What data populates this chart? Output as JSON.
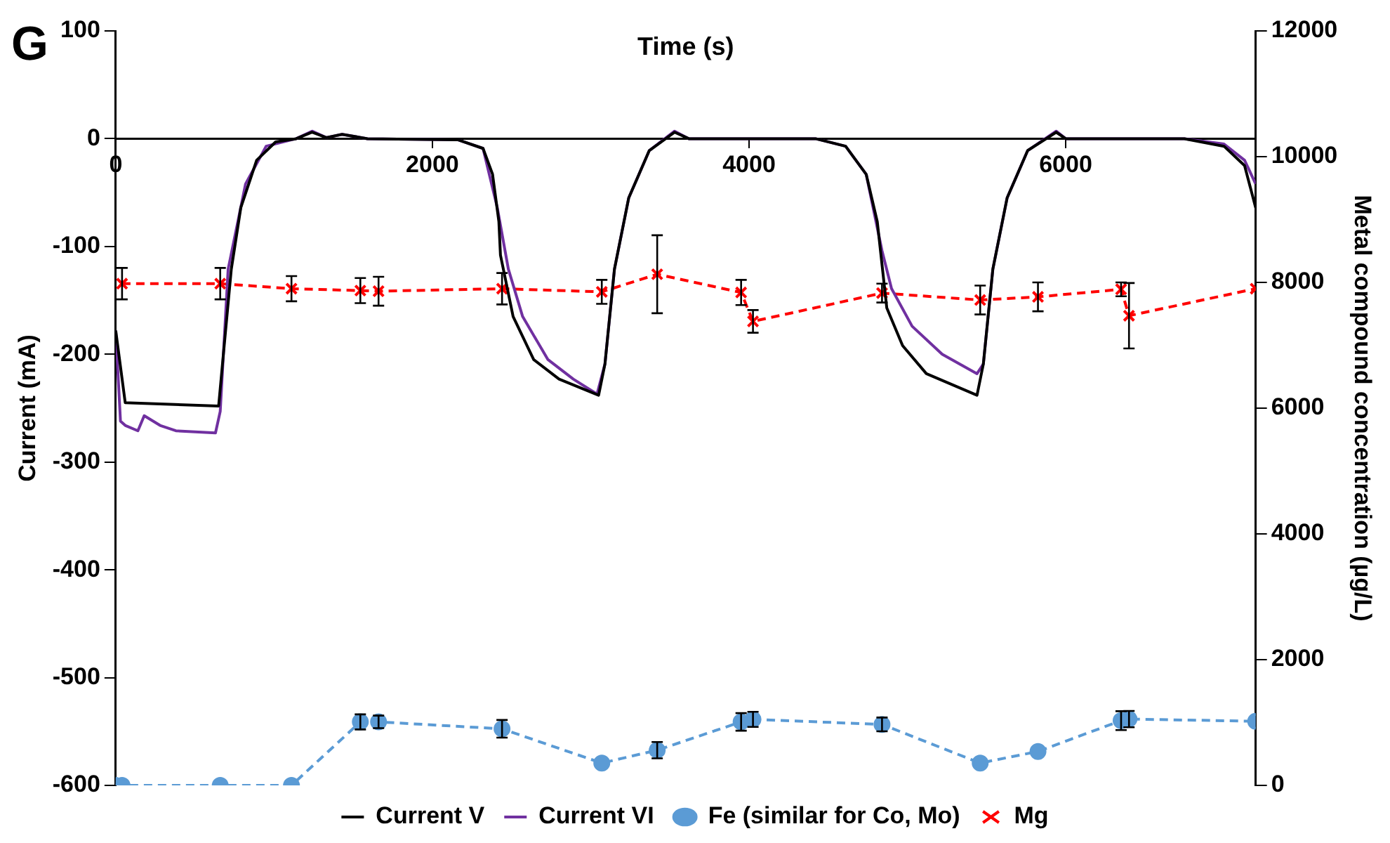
{
  "chart_data": {
    "type": "line",
    "xlabel": "Time (s)",
    "ylabel": "Current (mA)",
    "y2label": "Metal compound concentration (µg/L)",
    "annotations": [
      "G"
    ],
    "xlim": [
      0,
      7200
    ],
    "xticks": [
      0,
      2000,
      4000,
      6000
    ],
    "ylim": [
      -600,
      100
    ],
    "yticks": [
      -600,
      -500,
      -400,
      -300,
      -200,
      -100,
      0,
      100
    ],
    "y2lim": [
      0,
      12000
    ],
    "y2ticks": [
      0,
      2000,
      4000,
      6000,
      8000,
      10000,
      12000
    ],
    "legend": "bottom",
    "grid": false,
    "series": [
      {
        "name": "Current V",
        "color": "#000000",
        "marker": "none",
        "line_style": "solid",
        "x": [
          0,
          60,
          650,
          680,
          730,
          790,
          890,
          1010,
          1140,
          1240,
          1330,
          1430,
          1590,
          2160,
          2320,
          2380,
          2420,
          2430,
          2510,
          2640,
          2800,
          3050,
          3090,
          3150,
          3240,
          3370,
          3530,
          3620,
          4420,
          4610,
          4740,
          4810,
          4870,
          4970,
          5120,
          5440,
          5480,
          5540,
          5630,
          5760,
          5940,
          6000,
          6750,
          7000,
          7130,
          7200
        ],
        "values": [
          -178,
          -245,
          -248,
          -200,
          -121,
          -64,
          -20,
          -3,
          0,
          6,
          1,
          4,
          0,
          -1,
          -9,
          -33,
          -77,
          -108,
          -165,
          -205,
          -223,
          -238,
          -209,
          -121,
          -55,
          -11,
          6,
          0,
          0,
          -7,
          -33,
          -77,
          -157,
          -192,
          -218,
          -238,
          -209,
          -121,
          -55,
          -11,
          6,
          0,
          0,
          -7,
          -25,
          -64
        ]
      },
      {
        "name": "Current VI",
        "color": "#7030a0",
        "marker": "none",
        "line_style": "solid",
        "x": [
          0,
          30,
          60,
          140,
          180,
          280,
          380,
          630,
          660,
          710,
          820,
          950,
          1140,
          1240,
          1330,
          1430,
          1590,
          2160,
          2320,
          2410,
          2480,
          2570,
          2730,
          2890,
          3040,
          3090,
          3150,
          3240,
          3370,
          3530,
          3620,
          4420,
          4610,
          4740,
          4840,
          4900,
          5030,
          5220,
          5440,
          5480,
          5540,
          5630,
          5760,
          5940,
          6000,
          6750,
          7000,
          7130,
          7200
        ],
        "values": [
          -178,
          -262,
          -266,
          -271,
          -257,
          -266,
          -271,
          -273,
          -253,
          -121,
          -42,
          -7,
          0,
          7,
          1,
          4,
          0,
          -1,
          -9,
          -64,
          -121,
          -165,
          -205,
          -223,
          -237,
          -209,
          -121,
          -55,
          -11,
          7,
          0,
          0,
          -7,
          -33,
          -104,
          -139,
          -174,
          -200,
          -218,
          -209,
          -121,
          -55,
          -11,
          7,
          0,
          0,
          -5,
          -20,
          -42
        ]
      },
      {
        "name": "Fe (similar for Co, Mo)",
        "color": "#5b9bd5",
        "marker": "circle",
        "line_style": "dashed",
        "axis": "y2",
        "x": [
          0,
          40,
          660,
          1110,
          1545,
          1660,
          2440,
          3070,
          3420,
          3950,
          4025,
          4840,
          5460,
          5825,
          6350,
          6400,
          7200
        ],
        "values": [
          0,
          0,
          0,
          0,
          1010,
          1010,
          900,
          355,
          560,
          1010,
          1050,
          970,
          355,
          540,
          1030,
          1055,
          1020
        ],
        "errors": [
          null,
          null,
          null,
          null,
          120,
          100,
          140,
          null,
          130,
          140,
          120,
          110,
          null,
          null,
          150,
          130,
          null
        ]
      },
      {
        "name": "Mg",
        "color": "#ff0000",
        "marker": "cross",
        "line_style": "dashed",
        "axis": "y2",
        "x": [
          40,
          660,
          1110,
          1545,
          1660,
          2440,
          3070,
          3420,
          3950,
          4025,
          4840,
          5460,
          5825,
          6350,
          6400,
          7200
        ],
        "values": [
          7980,
          7980,
          7900,
          7870,
          7860,
          7900,
          7850,
          8130,
          7840,
          7380,
          7830,
          7720,
          7770,
          7890,
          7470,
          7900
        ],
        "errors": [
          250,
          250,
          200,
          200,
          230,
          250,
          190,
          620,
          200,
          180,
          150,
          230,
          230,
          110,
          520,
          null
        ]
      }
    ]
  }
}
